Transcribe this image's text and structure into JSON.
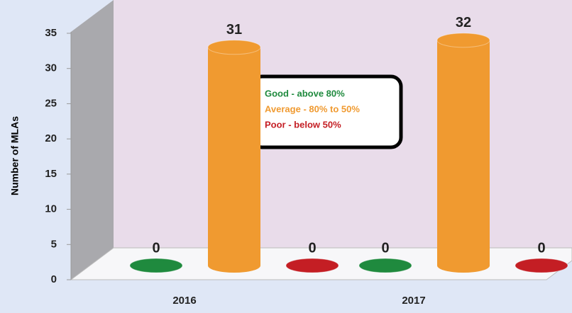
{
  "chart_data": {
    "type": "bar3d",
    "y_label": "Number of MLAs",
    "categories": [
      "2016",
      "2017"
    ],
    "series": [
      {
        "name": "Good - above 80%",
        "color": "#1f8a3e",
        "values": [
          0,
          0
        ]
      },
      {
        "name": "Average - 80% to 50%",
        "color": "#f09a30",
        "values": [
          31,
          32
        ]
      },
      {
        "name": "Poor  - below 50%",
        "color": "#c41e24",
        "values": [
          0,
          0
        ]
      }
    ],
    "ylim": [
      0,
      35
    ],
    "yticks": [
      0,
      5,
      10,
      15,
      20,
      25,
      30,
      35
    ],
    "grid": false
  }
}
